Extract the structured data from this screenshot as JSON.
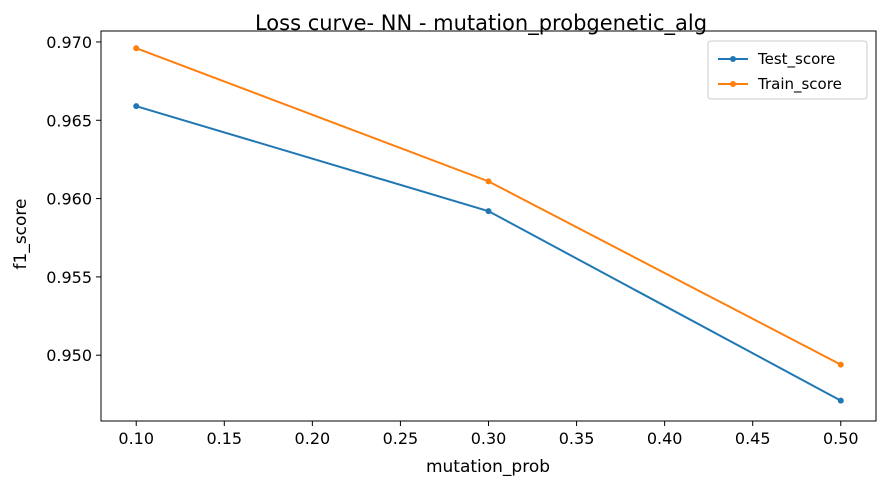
{
  "chart_data": {
    "type": "line",
    "title": "Loss curve- NN - mutation_probgenetic_alg",
    "xlabel": "mutation_prob",
    "ylabel": "f1_score",
    "x": [
      0.1,
      0.3,
      0.5
    ],
    "xlim": [
      0.08,
      0.52
    ],
    "ylim": [
      0.9458,
      0.9707
    ],
    "xticks": [
      0.1,
      0.15,
      0.2,
      0.25,
      0.3,
      0.35,
      0.4,
      0.45,
      0.5
    ],
    "xtick_labels": [
      "0.10",
      "0.15",
      "0.20",
      "0.25",
      "0.30",
      "0.35",
      "0.40",
      "0.45",
      "0.50"
    ],
    "yticks": [
      0.95,
      0.955,
      0.96,
      0.965,
      0.97
    ],
    "ytick_labels": [
      "0.950",
      "0.955",
      "0.960",
      "0.965",
      "0.970"
    ],
    "grid": false,
    "legend_position": "top-right",
    "series": [
      {
        "name": "Test_score",
        "color": "#1f77b4",
        "values": [
          0.9659,
          0.9592,
          0.9471
        ]
      },
      {
        "name": "Train_score",
        "color": "#ff7f0e",
        "values": [
          0.9696,
          0.9611,
          0.9494
        ]
      }
    ]
  }
}
